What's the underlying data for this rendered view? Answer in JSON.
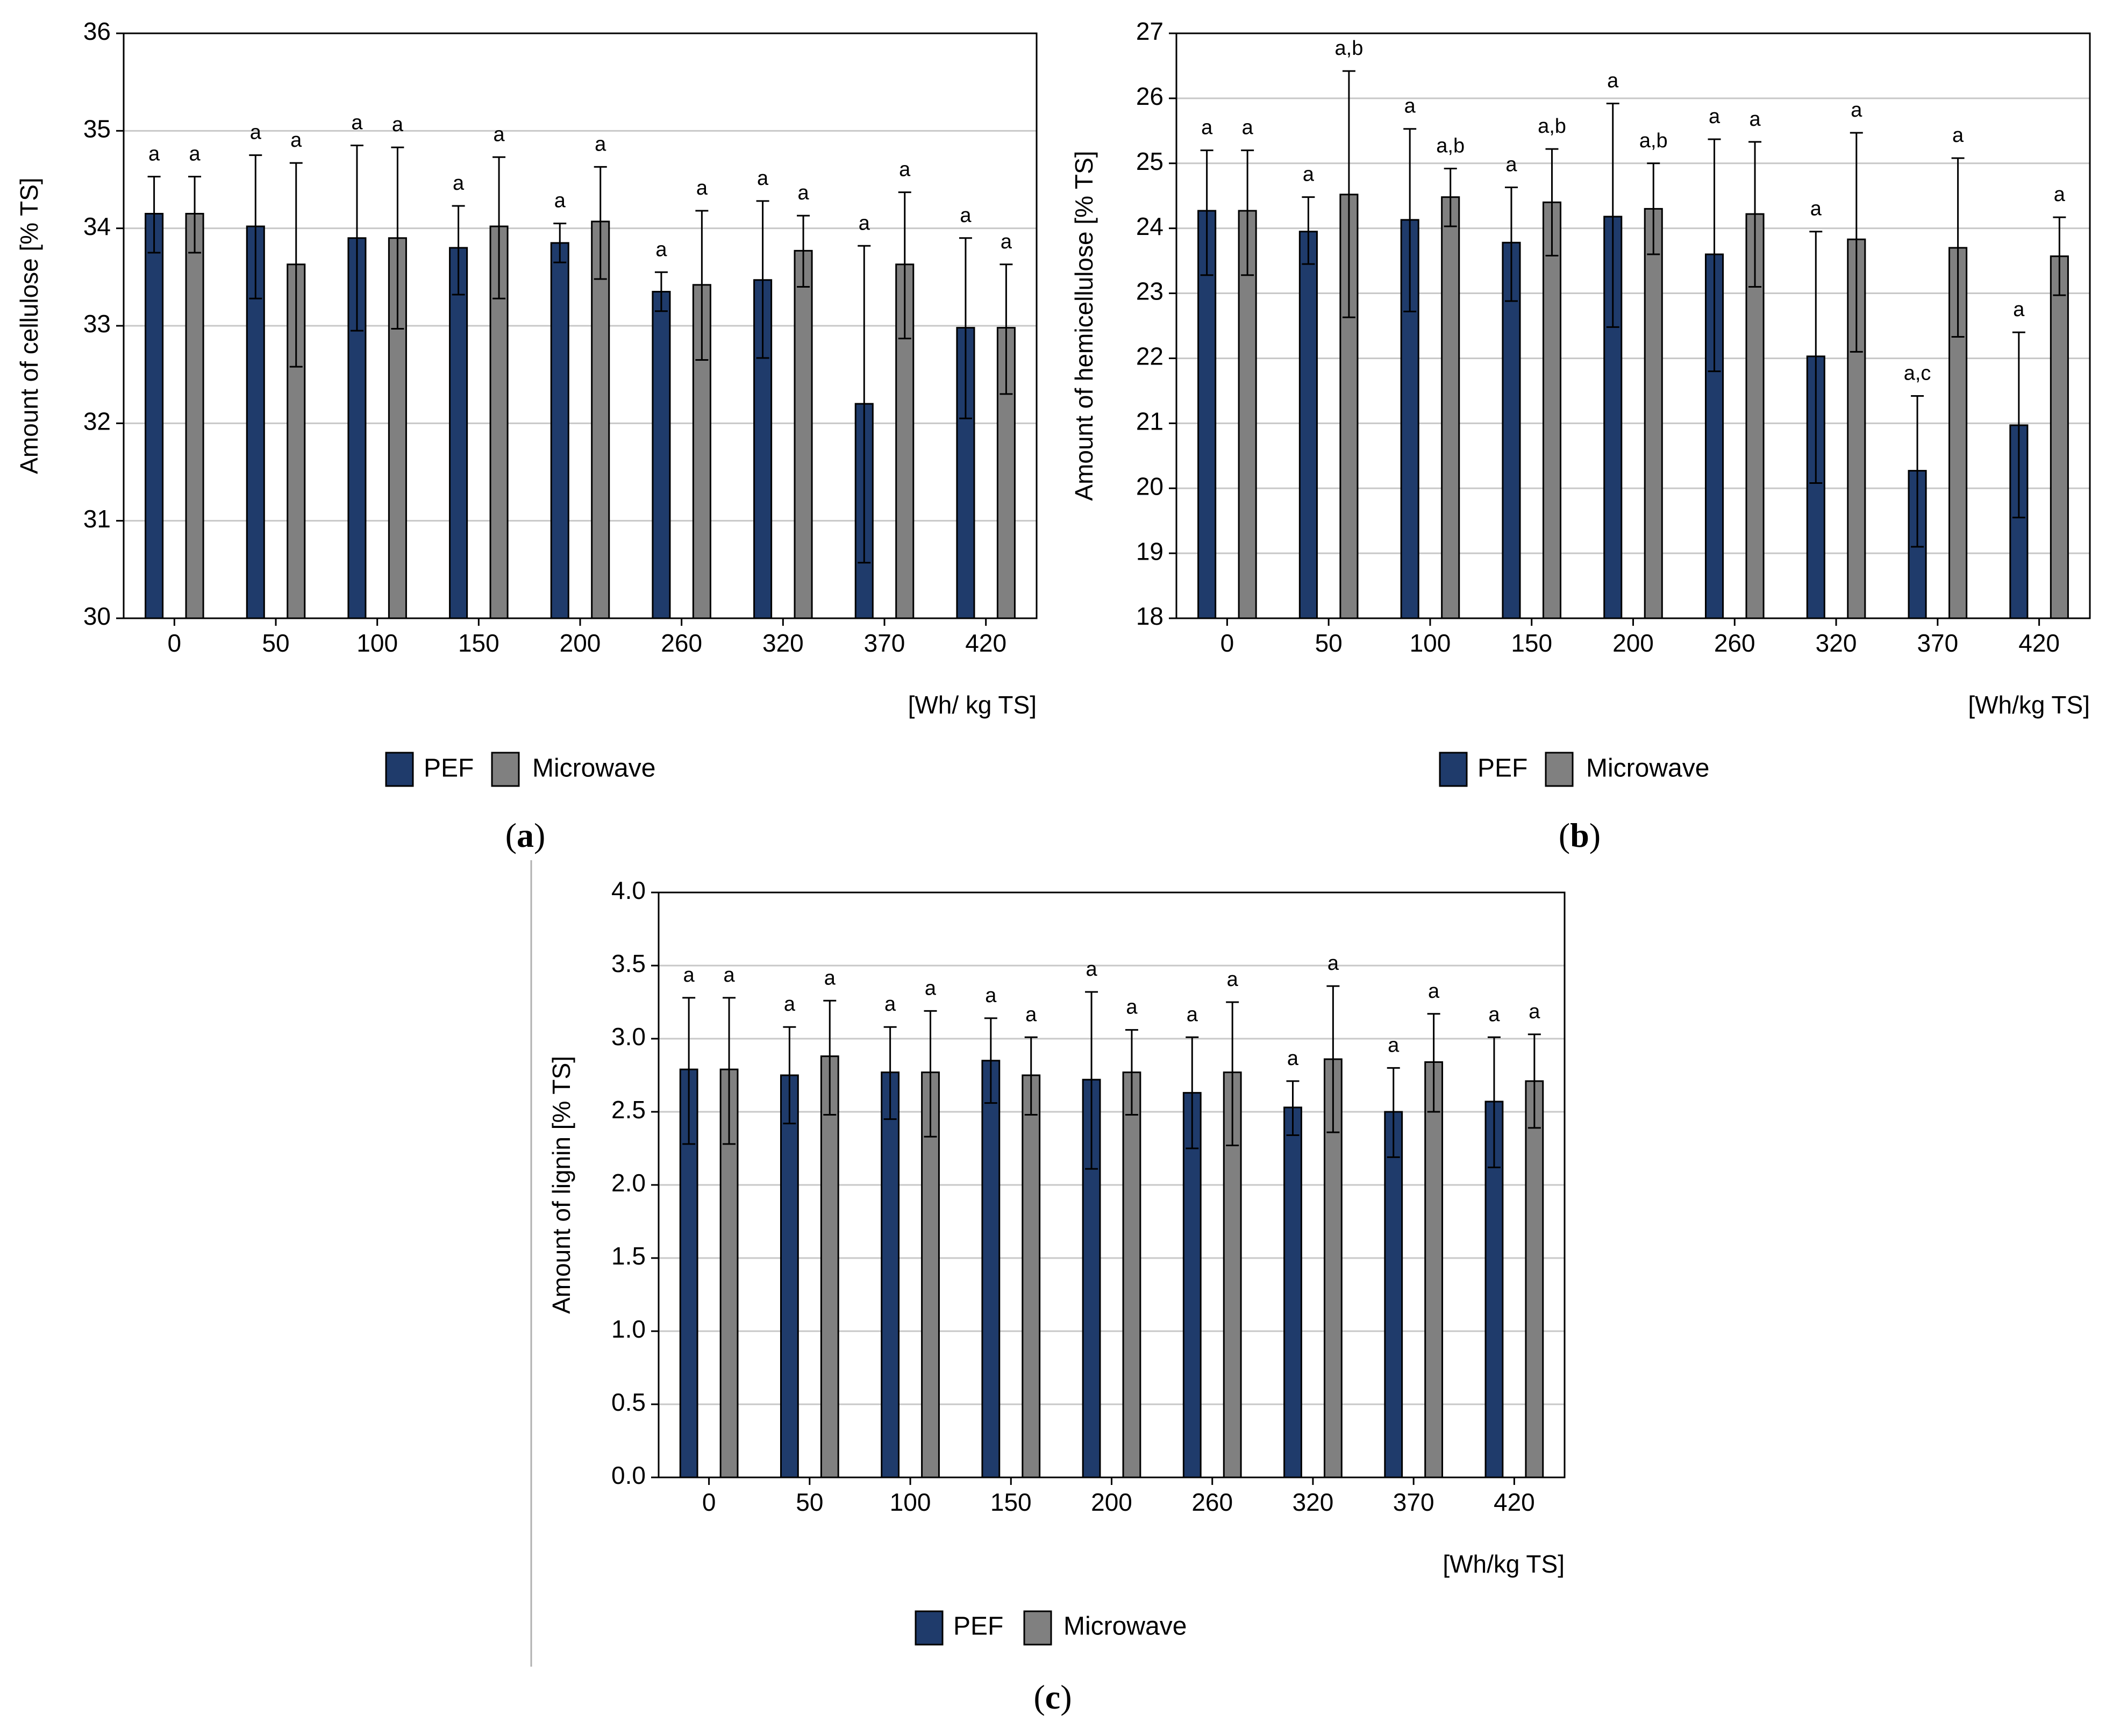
{
  "colors": {
    "pef": "#1f3b6b",
    "microwave": "#808080",
    "grid": "#c8c8c8"
  },
  "legend": {
    "series1": "PEF",
    "series2": "Microwave"
  },
  "chart_data": [
    {
      "type": "bar",
      "caption_letter": "a",
      "ylabel": "Amount of cellulose [% TS]",
      "xlabel": "[Wh/ kg TS]",
      "ylim": [
        30,
        36
      ],
      "yticks": [
        "30",
        "31",
        "32",
        "33",
        "34",
        "35",
        "36"
      ],
      "categories": [
        "0",
        "50",
        "100",
        "150",
        "200",
        "260",
        "320",
        "370",
        "420"
      ],
      "series": [
        {
          "name": "PEF",
          "values": [
            34.15,
            34.02,
            33.9,
            33.8,
            33.85,
            33.35,
            33.47,
            32.2,
            32.98
          ],
          "err_low": [
            33.75,
            33.28,
            32.95,
            33.32,
            33.65,
            33.15,
            32.67,
            30.57,
            32.05
          ],
          "err_high": [
            34.53,
            34.75,
            34.85,
            34.23,
            34.05,
            33.55,
            34.28,
            33.82,
            33.9
          ],
          "sig": [
            "a",
            "a",
            "a",
            "a",
            "a",
            "a",
            "a",
            "a",
            "a"
          ]
        },
        {
          "name": "Microwave",
          "values": [
            34.15,
            33.63,
            33.9,
            34.02,
            34.07,
            33.42,
            33.77,
            33.63,
            32.98
          ],
          "err_low": [
            33.75,
            32.58,
            32.97,
            33.28,
            33.48,
            32.65,
            33.4,
            32.87,
            32.3
          ],
          "err_high": [
            34.53,
            34.67,
            34.83,
            34.73,
            34.63,
            34.18,
            34.13,
            34.37,
            33.63
          ],
          "sig": [
            "a",
            "a",
            "a",
            "a",
            "a",
            "a",
            "a",
            "a",
            "a"
          ]
        }
      ]
    },
    {
      "type": "bar",
      "caption_letter": "b",
      "ylabel": "Amount of hemicellulose [% TS]",
      "xlabel": "[Wh/kg TS]",
      "ylim": [
        18,
        27
      ],
      "yticks": [
        "18",
        "19",
        "20",
        "21",
        "22",
        "23",
        "24",
        "25",
        "26",
        "27"
      ],
      "categories": [
        "0",
        "50",
        "100",
        "150",
        "200",
        "260",
        "320",
        "370",
        "420"
      ],
      "series": [
        {
          "name": "PEF",
          "values": [
            24.27,
            23.95,
            24.13,
            23.78,
            24.18,
            23.6,
            22.03,
            20.27,
            20.97
          ],
          "err_low": [
            23.28,
            23.45,
            22.72,
            22.88,
            22.48,
            21.8,
            20.08,
            19.1,
            19.55
          ],
          "err_high": [
            25.2,
            24.48,
            25.53,
            24.63,
            25.92,
            25.37,
            23.95,
            21.42,
            22.4
          ],
          "sig": [
            "a",
            "a",
            "a",
            "a",
            "a",
            "a",
            "a",
            "a,c",
            "a"
          ]
        },
        {
          "name": "Microwave",
          "values": [
            24.27,
            24.52,
            24.48,
            24.4,
            24.3,
            24.22,
            23.83,
            23.7,
            23.57
          ],
          "err_low": [
            23.28,
            22.63,
            24.03,
            23.58,
            23.6,
            23.1,
            22.1,
            22.33,
            22.97
          ],
          "err_high": [
            25.2,
            26.42,
            24.92,
            25.22,
            25.0,
            25.33,
            25.47,
            25.08,
            24.17
          ],
          "sig": [
            "a",
            "a,b",
            "a,b",
            "a,b",
            "a,b",
            "a",
            "a",
            "a",
            "a"
          ]
        }
      ]
    },
    {
      "type": "bar",
      "caption_letter": "c",
      "ylabel": "Amount of lignin [% TS]",
      "xlabel": "[Wh/kg TS]",
      "ylim": [
        0,
        4
      ],
      "yticks": [
        "0.0",
        "0.5",
        "1.0",
        "1.5",
        "2.0",
        "2.5",
        "3.0",
        "3.5",
        "4.0"
      ],
      "categories": [
        "0",
        "50",
        "100",
        "150",
        "200",
        "260",
        "320",
        "370",
        "420"
      ],
      "series": [
        {
          "name": "PEF",
          "values": [
            2.79,
            2.75,
            2.77,
            2.85,
            2.72,
            2.63,
            2.53,
            2.5,
            2.57
          ],
          "err_low": [
            2.28,
            2.42,
            2.45,
            2.56,
            2.11,
            2.25,
            2.34,
            2.19,
            2.12
          ],
          "err_high": [
            3.28,
            3.08,
            3.08,
            3.14,
            3.32,
            3.01,
            2.71,
            2.8,
            3.01
          ],
          "sig": [
            "a",
            "a",
            "a",
            "a",
            "a",
            "a",
            "a",
            "a",
            "a"
          ]
        },
        {
          "name": "Microwave",
          "values": [
            2.79,
            2.88,
            2.77,
            2.75,
            2.77,
            2.77,
            2.86,
            2.84,
            2.71
          ],
          "err_low": [
            2.28,
            2.48,
            2.33,
            2.48,
            2.48,
            2.27,
            2.36,
            2.5,
            2.39
          ],
          "err_high": [
            3.28,
            3.26,
            3.19,
            3.01,
            3.06,
            3.25,
            3.36,
            3.17,
            3.03
          ],
          "sig": [
            "a",
            "a",
            "a",
            "a",
            "a",
            "a",
            "a",
            "a",
            "a"
          ]
        }
      ]
    }
  ]
}
